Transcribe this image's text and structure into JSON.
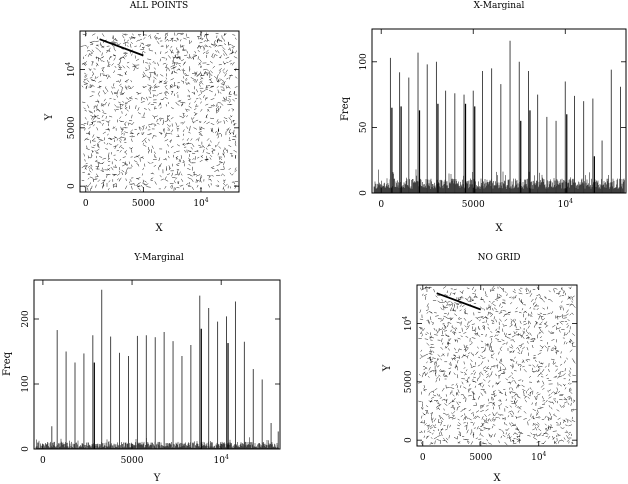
{
  "chart_data": [
    {
      "id": "all_points",
      "type": "scatter",
      "title": "ALL POINTS",
      "xlabel": "X",
      "ylabel": "Y",
      "xlim": [
        -500,
        13300
      ],
      "ylim": [
        -500,
        13300
      ],
      "x_ticks": [
        {
          "value": 0,
          "label": "0"
        },
        {
          "value": 5000,
          "label": "5000"
        },
        {
          "value": 10000,
          "label": "10",
          "sup": "4"
        }
      ],
      "y_ticks": [
        {
          "value": 0,
          "label": "0"
        },
        {
          "value": 5000,
          "label": "5000"
        },
        {
          "value": 10000,
          "label": "10",
          "sup": "4"
        }
      ],
      "points": {
        "count": 1400,
        "seed": 11,
        "grid": true,
        "grid_spacing": 500,
        "streak": {
          "x": [
            1200,
            5000
          ],
          "y": [
            12600,
            11200
          ]
        }
      },
      "grid": false
    },
    {
      "id": "x_marginal",
      "type": "bar",
      "title": "X-Marginal",
      "xlabel": "X",
      "ylabel": "Freq",
      "xlim": [
        -500,
        13300
      ],
      "ylim": [
        0,
        125
      ],
      "x_ticks": [
        {
          "value": 0,
          "label": "0"
        },
        {
          "value": 5000,
          "label": "5000"
        },
        {
          "value": 10000,
          "label": "10",
          "sup": "4"
        }
      ],
      "y_ticks": [
        {
          "value": 0,
          "label": "0"
        },
        {
          "value": 50,
          "label": "50"
        },
        {
          "value": 100,
          "label": "100"
        }
      ],
      "background": {
        "base": 7,
        "amplitude": 8,
        "seed": 5
      },
      "spikes": [
        {
          "x": 500,
          "values": [
            103,
            65
          ]
        },
        {
          "x": 1000,
          "values": [
            92,
            66
          ]
        },
        {
          "x": 1500,
          "values": [
            88
          ]
        },
        {
          "x": 2000,
          "values": [
            107,
            63
          ]
        },
        {
          "x": 2500,
          "values": [
            98
          ]
        },
        {
          "x": 3000,
          "values": [
            100,
            68
          ]
        },
        {
          "x": 3500,
          "values": [
            78
          ]
        },
        {
          "x": 4000,
          "values": [
            76
          ]
        },
        {
          "x": 4500,
          "values": [
            75,
            68
          ]
        },
        {
          "x": 5000,
          "values": [
            78,
            66
          ]
        },
        {
          "x": 5500,
          "values": [
            93
          ]
        },
        {
          "x": 6000,
          "values": [
            95
          ]
        },
        {
          "x": 6500,
          "values": [
            83
          ]
        },
        {
          "x": 7000,
          "values": [
            116
          ]
        },
        {
          "x": 7500,
          "values": [
            100,
            55
          ]
        },
        {
          "x": 8000,
          "values": [
            93,
            63
          ]
        },
        {
          "x": 8500,
          "values": [
            75
          ]
        },
        {
          "x": 9000,
          "values": [
            58
          ]
        },
        {
          "x": 9500,
          "values": [
            55
          ]
        },
        {
          "x": 10000,
          "values": [
            85,
            60
          ]
        },
        {
          "x": 10500,
          "values": [
            74
          ]
        },
        {
          "x": 11000,
          "values": [
            70
          ]
        },
        {
          "x": 11500,
          "values": [
            72,
            28
          ]
        },
        {
          "x": 12000,
          "values": [
            40
          ]
        },
        {
          "x": 12500,
          "values": [
            94
          ]
        },
        {
          "x": 13000,
          "values": [
            81
          ]
        }
      ]
    },
    {
      "id": "y_marginal",
      "type": "bar",
      "title": "Y-Marginal",
      "xlabel": "Y",
      "ylabel": "Freq",
      "xlim": [
        -500,
        13300
      ],
      "ylim": [
        0,
        260
      ],
      "x_ticks": [
        {
          "value": 0,
          "label": "0"
        },
        {
          "value": 5000,
          "label": "5000"
        },
        {
          "value": 10000,
          "label": "10",
          "sup": "4"
        }
      ],
      "y_ticks": [
        {
          "value": 0,
          "label": "0"
        },
        {
          "value": 100,
          "label": "100"
        },
        {
          "value": 200,
          "label": "200"
        }
      ],
      "background": {
        "base": 6,
        "amplitude": 10,
        "seed": 9
      },
      "spikes": [
        {
          "x": 500,
          "values": [
            35
          ]
        },
        {
          "x": 800,
          "values": [
            183
          ]
        },
        {
          "x": 1300,
          "values": [
            150
          ]
        },
        {
          "x": 1800,
          "values": [
            133
          ]
        },
        {
          "x": 2300,
          "values": [
            147
          ]
        },
        {
          "x": 2800,
          "values": [
            175,
            133
          ]
        },
        {
          "x": 3300,
          "values": [
            245
          ]
        },
        {
          "x": 3800,
          "values": [
            173
          ]
        },
        {
          "x": 4300,
          "values": [
            148
          ]
        },
        {
          "x": 4800,
          "values": [
            143
          ]
        },
        {
          "x": 5300,
          "values": [
            174
          ]
        },
        {
          "x": 5800,
          "values": [
            175
          ]
        },
        {
          "x": 6300,
          "values": [
            172
          ]
        },
        {
          "x": 6800,
          "values": [
            180
          ]
        },
        {
          "x": 7300,
          "values": [
            166
          ]
        },
        {
          "x": 7800,
          "values": [
            143
          ]
        },
        {
          "x": 8300,
          "values": [
            160
          ]
        },
        {
          "x": 8800,
          "values": [
            236,
            185
          ]
        },
        {
          "x": 9300,
          "values": [
            217
          ]
        },
        {
          "x": 9800,
          "values": [
            196
          ]
        },
        {
          "x": 10300,
          "values": [
            204,
            163
          ]
        },
        {
          "x": 10800,
          "values": [
            227
          ]
        },
        {
          "x": 11300,
          "values": [
            165
          ]
        },
        {
          "x": 11800,
          "values": [
            123
          ]
        },
        {
          "x": 12300,
          "values": [
            107
          ]
        },
        {
          "x": 12800,
          "values": [
            40
          ]
        },
        {
          "x": 13200,
          "values": [
            27
          ]
        }
      ]
    },
    {
      "id": "no_grid",
      "type": "scatter",
      "title": "NO GRID",
      "xlabel": "X",
      "ylabel": "Y",
      "xlim": [
        -500,
        13300
      ],
      "ylim": [
        -500,
        13300
      ],
      "x_ticks": [
        {
          "value": 0,
          "label": "0"
        },
        {
          "value": 5000,
          "label": "5000"
        },
        {
          "value": 10000,
          "label": "10",
          "sup": "4"
        }
      ],
      "y_ticks": [
        {
          "value": 0,
          "label": "0"
        },
        {
          "value": 5000,
          "label": "5000"
        },
        {
          "value": 10000,
          "label": "10",
          "sup": "4"
        }
      ],
      "points": {
        "count": 1400,
        "seed": 23,
        "grid": false,
        "streak": {
          "x": [
            1200,
            5000
          ],
          "y": [
            12600,
            11200
          ]
        }
      },
      "grid": false
    }
  ]
}
